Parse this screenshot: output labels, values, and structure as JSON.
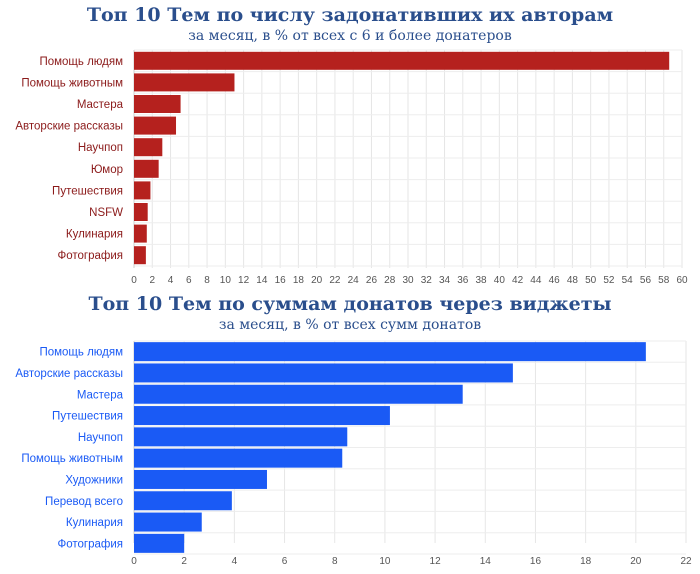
{
  "chart_data": [
    {
      "type": "bar",
      "orientation": "horizontal",
      "title": "Топ 10 Тем по числу задонативших их авторам",
      "subtitle": "за месяц, в % от всех с 6 и более донатеров",
      "categories": [
        "Помощь людям",
        "Помощь животным",
        "Мастера",
        "Авторские рассказы",
        "Научпоп",
        "Юмор",
        "Путешествия",
        "NSFW",
        "Кулинария",
        "Фотография"
      ],
      "values": [
        58.6,
        11.0,
        5.1,
        4.6,
        3.1,
        2.7,
        1.8,
        1.5,
        1.4,
        1.3
      ],
      "xlim": [
        0,
        60
      ],
      "xticks": [
        0,
        2,
        4,
        6,
        8,
        10,
        12,
        14,
        16,
        18,
        20,
        22,
        24,
        26,
        28,
        30,
        32,
        34,
        36,
        38,
        40,
        42,
        44,
        46,
        48,
        50,
        52,
        54,
        56,
        58,
        60
      ],
      "grid": true,
      "bar_color": "#b5211e",
      "label_color": "#8b1a1a"
    },
    {
      "type": "bar",
      "orientation": "horizontal",
      "title": "Топ 10 Тем по суммам донатов через виджеты",
      "subtitle": "за месяц, в % от всех сумм донатов",
      "categories": [
        "Помощь людям",
        "Авторские рассказы",
        "Мастера",
        "Путешествия",
        "Научпоп",
        "Помощь животным",
        "Художники",
        "Перевод всего",
        "Кулинария",
        "Фотография"
      ],
      "values": [
        20.4,
        15.1,
        13.1,
        10.2,
        8.5,
        8.3,
        5.3,
        3.9,
        2.7,
        2.0
      ],
      "xlim": [
        0,
        22
      ],
      "xticks": [
        0,
        2,
        4,
        6,
        8,
        10,
        12,
        14,
        16,
        18,
        20,
        22
      ],
      "grid": true,
      "bar_color": "#1a5af5",
      "label_color": "#1a5af5"
    }
  ]
}
